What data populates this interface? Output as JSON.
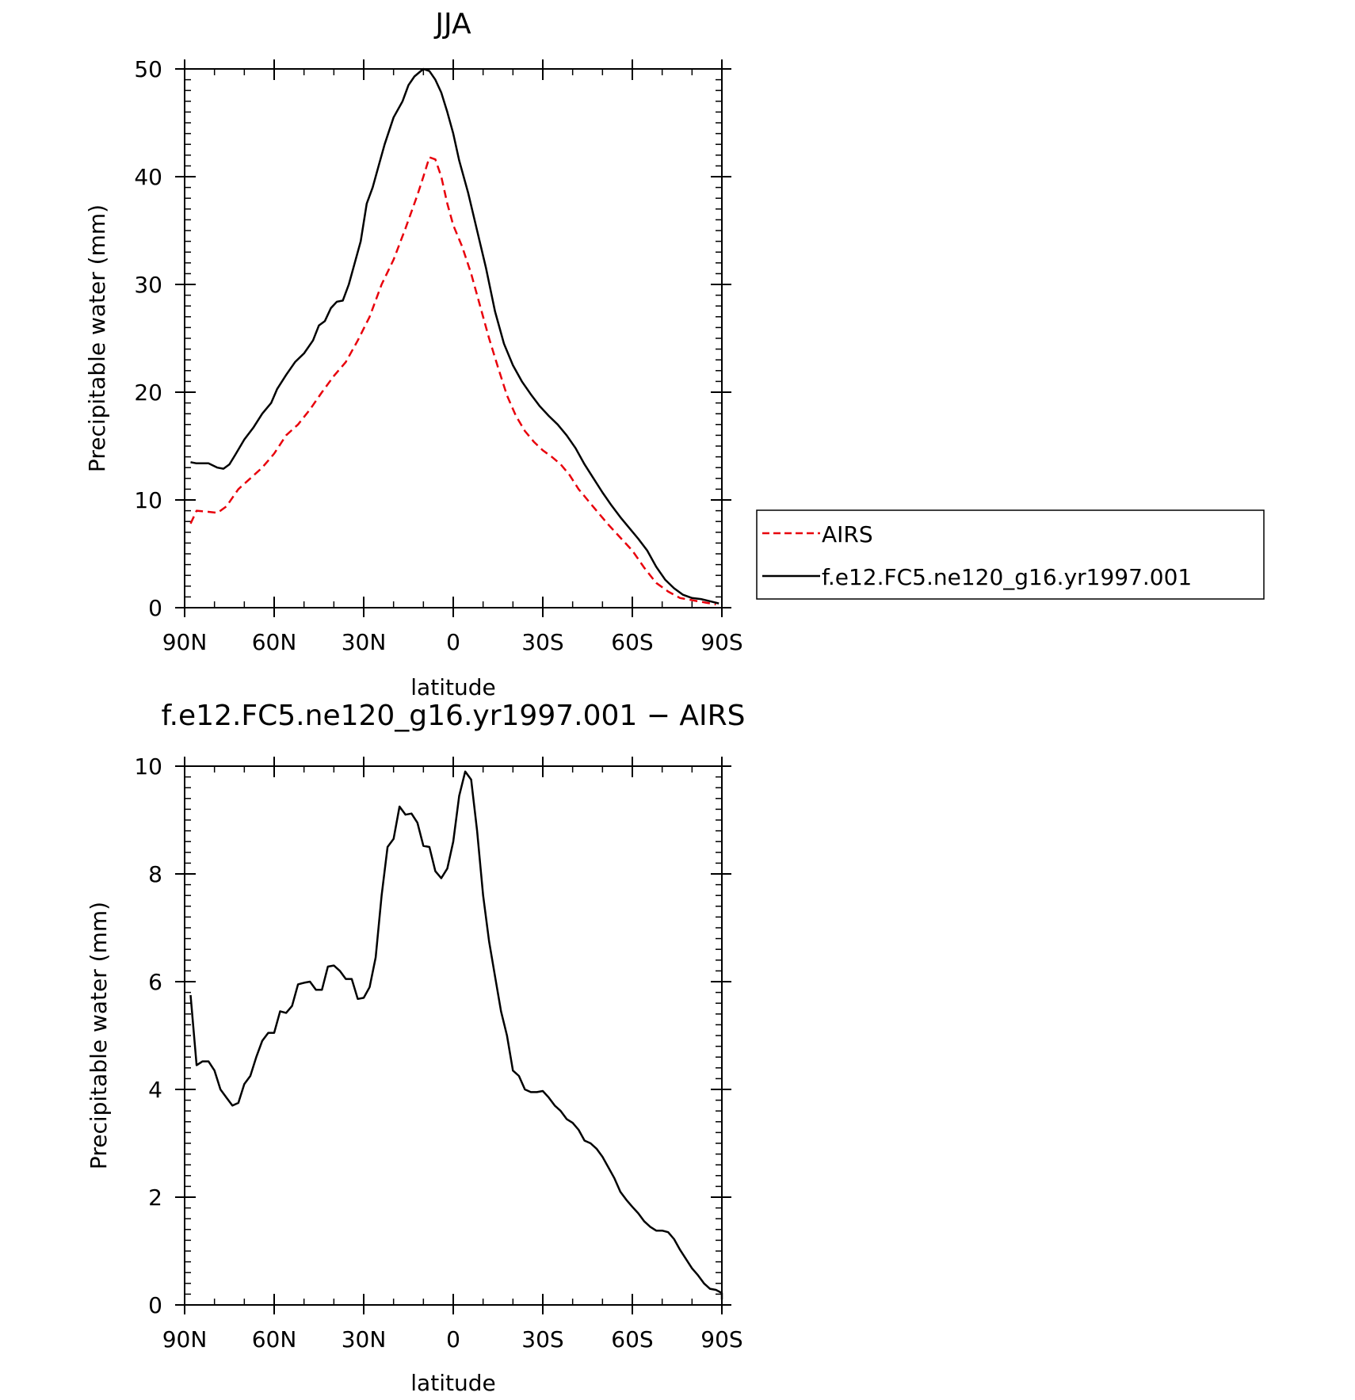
{
  "chart_data": [
    {
      "type": "line",
      "title": "JJA",
      "xlabel": "latitude",
      "ylabel": "Precipitable water (mm)",
      "xlim": [
        90,
        -90
      ],
      "ylim": [
        0,
        50
      ],
      "x_ticks": [
        {
          "value": 90,
          "label": "90N"
        },
        {
          "value": 60,
          "label": "60N"
        },
        {
          "value": 30,
          "label": "30N"
        },
        {
          "value": 0,
          "label": "0"
        },
        {
          "value": -30,
          "label": "30S"
        },
        {
          "value": -60,
          "label": "60S"
        },
        {
          "value": -90,
          "label": "90S"
        }
      ],
      "y_ticks": [
        {
          "value": 0,
          "label": "0"
        },
        {
          "value": 10,
          "label": "10"
        },
        {
          "value": 20,
          "label": "20"
        },
        {
          "value": 30,
          "label": "30"
        },
        {
          "value": 40,
          "label": "40"
        },
        {
          "value": 50,
          "label": "50"
        }
      ],
      "legend_position": "right",
      "series": [
        {
          "name": "AIRS",
          "color": "#e8000b",
          "style": "dashed",
          "points": [
            [
              88,
              7.8
            ],
            [
              86,
              9.0
            ],
            [
              82,
              8.9
            ],
            [
              79,
              8.8
            ],
            [
              76,
              9.4
            ],
            [
              72,
              11.0
            ],
            [
              68,
              12.0
            ],
            [
              64,
              13.0
            ],
            [
              60,
              14.3
            ],
            [
              56,
              16.0
            ],
            [
              52,
              17.0
            ],
            [
              48,
              18.4
            ],
            [
              44,
              20.0
            ],
            [
              40,
              21.5
            ],
            [
              36,
              22.8
            ],
            [
              32,
              24.8
            ],
            [
              28,
              27.0
            ],
            [
              24,
              30.0
            ],
            [
              20,
              32.3
            ],
            [
              16,
              35.2
            ],
            [
              12,
              38.3
            ],
            [
              10,
              40.0
            ],
            [
              8,
              41.8
            ],
            [
              6,
              41.6
            ],
            [
              4,
              40.0
            ],
            [
              2,
              37.5
            ],
            [
              0,
              35.5
            ],
            [
              -3,
              33.5
            ],
            [
              -6,
              31.0
            ],
            [
              -9,
              28.0
            ],
            [
              -12,
              25.0
            ],
            [
              -15,
              22.3
            ],
            [
              -18,
              19.7
            ],
            [
              -21,
              17.8
            ],
            [
              -24,
              16.4
            ],
            [
              -27,
              15.4
            ],
            [
              -30,
              14.6
            ],
            [
              -33,
              14.0
            ],
            [
              -36,
              13.3
            ],
            [
              -39,
              12.3
            ],
            [
              -42,
              11.0
            ],
            [
              -45,
              10.0
            ],
            [
              -48,
              9.0
            ],
            [
              -52,
              7.7
            ],
            [
              -56,
              6.5
            ],
            [
              -60,
              5.3
            ],
            [
              -64,
              3.7
            ],
            [
              -68,
              2.3
            ],
            [
              -72,
              1.5
            ],
            [
              -76,
              0.9
            ],
            [
              -80,
              0.7
            ],
            [
              -84,
              0.5
            ],
            [
              -88,
              0.3
            ]
          ]
        },
        {
          "name": "f.e12.FC5.ne120_g16.yr1997.001",
          "color": "#000000",
          "style": "solid",
          "points": [
            [
              88,
              13.5
            ],
            [
              86,
              13.4
            ],
            [
              82,
              13.4
            ],
            [
              79,
              13.0
            ],
            [
              77,
              12.9
            ],
            [
              75,
              13.3
            ],
            [
              73,
              14.2
            ],
            [
              70,
              15.6
            ],
            [
              67,
              16.7
            ],
            [
              64,
              18.0
            ],
            [
              61,
              19.0
            ],
            [
              59,
              20.3
            ],
            [
              56,
              21.6
            ],
            [
              53,
              22.8
            ],
            [
              50,
              23.6
            ],
            [
              47,
              24.8
            ],
            [
              45,
              26.2
            ],
            [
              43,
              26.6
            ],
            [
              41,
              27.8
            ],
            [
              39,
              28.4
            ],
            [
              37,
              28.5
            ],
            [
              35,
              30.0
            ],
            [
              33,
              32.0
            ],
            [
              31,
              34.0
            ],
            [
              29,
              37.5
            ],
            [
              27,
              39.0
            ],
            [
              25,
              41.0
            ],
            [
              23,
              43.0
            ],
            [
              20,
              45.5
            ],
            [
              17,
              47.0
            ],
            [
              15,
              48.5
            ],
            [
              13,
              49.3
            ],
            [
              10,
              50.0
            ],
            [
              8,
              49.8
            ],
            [
              6,
              49.0
            ],
            [
              4,
              47.8
            ],
            [
              2,
              46.0
            ],
            [
              0,
              44.0
            ],
            [
              -2,
              41.5
            ],
            [
              -5,
              38.5
            ],
            [
              -8,
              35.0
            ],
            [
              -11,
              31.5
            ],
            [
              -14,
              27.5
            ],
            [
              -17,
              24.5
            ],
            [
              -20,
              22.5
            ],
            [
              -23,
              21.0
            ],
            [
              -26,
              19.8
            ],
            [
              -29,
              18.7
            ],
            [
              -32,
              17.8
            ],
            [
              -35,
              17.0
            ],
            [
              -38,
              16.0
            ],
            [
              -41,
              14.8
            ],
            [
              -44,
              13.3
            ],
            [
              -47,
              12.0
            ],
            [
              -50,
              10.7
            ],
            [
              -53,
              9.5
            ],
            [
              -56,
              8.4
            ],
            [
              -59,
              7.4
            ],
            [
              -62,
              6.4
            ],
            [
              -65,
              5.3
            ],
            [
              -68,
              3.8
            ],
            [
              -71,
              2.6
            ],
            [
              -74,
              1.8
            ],
            [
              -77,
              1.2
            ],
            [
              -80,
              0.9
            ],
            [
              -83,
              0.8
            ],
            [
              -86,
              0.6
            ],
            [
              -89,
              0.4
            ]
          ]
        }
      ]
    },
    {
      "type": "line",
      "title": "f.e12.FC5.ne120_g16.yr1997.001 − AIRS",
      "xlabel": "latitude",
      "ylabel": "Precipitable water (mm)",
      "xlim": [
        90,
        -90
      ],
      "ylim": [
        0,
        10
      ],
      "x_ticks": [
        {
          "value": 90,
          "label": "90N"
        },
        {
          "value": 60,
          "label": "60N"
        },
        {
          "value": 30,
          "label": "30N"
        },
        {
          "value": 0,
          "label": "0"
        },
        {
          "value": -30,
          "label": "30S"
        },
        {
          "value": -60,
          "label": "60S"
        },
        {
          "value": -90,
          "label": "90S"
        }
      ],
      "y_ticks": [
        {
          "value": 0,
          "label": "0"
        },
        {
          "value": 2,
          "label": "2"
        },
        {
          "value": 4,
          "label": "4"
        },
        {
          "value": 6,
          "label": "6"
        },
        {
          "value": 8,
          "label": "8"
        },
        {
          "value": 10,
          "label": "10"
        }
      ],
      "series": [
        {
          "color": "#000000",
          "style": "solid",
          "points": [
            [
              88,
              5.75
            ],
            [
              86,
              4.45
            ],
            [
              84,
              4.52
            ],
            [
              82,
              4.52
            ],
            [
              80,
              4.35
            ],
            [
              78,
              4.0
            ],
            [
              76,
              3.85
            ],
            [
              74,
              3.7
            ],
            [
              72,
              3.75
            ],
            [
              70,
              4.1
            ],
            [
              68,
              4.25
            ],
            [
              66,
              4.6
            ],
            [
              64,
              4.9
            ],
            [
              62,
              5.05
            ],
            [
              60,
              5.05
            ],
            [
              58,
              5.45
            ],
            [
              56,
              5.42
            ],
            [
              54,
              5.55
            ],
            [
              52,
              5.95
            ],
            [
              50,
              5.98
            ],
            [
              48,
              6.0
            ],
            [
              46,
              5.85
            ],
            [
              44,
              5.85
            ],
            [
              42,
              6.28
            ],
            [
              40,
              6.3
            ],
            [
              38,
              6.2
            ],
            [
              36,
              6.05
            ],
            [
              34,
              6.05
            ],
            [
              32,
              5.68
            ],
            [
              30,
              5.7
            ],
            [
              28,
              5.9
            ],
            [
              26,
              6.45
            ],
            [
              24,
              7.6
            ],
            [
              22,
              8.5
            ],
            [
              20,
              8.65
            ],
            [
              18,
              9.25
            ],
            [
              16,
              9.1
            ],
            [
              14,
              9.12
            ],
            [
              12,
              8.95
            ],
            [
              10,
              8.52
            ],
            [
              8,
              8.5
            ],
            [
              6,
              8.05
            ],
            [
              4,
              7.92
            ],
            [
              2,
              8.1
            ],
            [
              0,
              8.6
            ],
            [
              -2,
              9.45
            ],
            [
              -4,
              9.9
            ],
            [
              -6,
              9.75
            ],
            [
              -8,
              8.8
            ],
            [
              -10,
              7.6
            ],
            [
              -12,
              6.75
            ],
            [
              -14,
              6.1
            ],
            [
              -16,
              5.45
            ],
            [
              -18,
              5.0
            ],
            [
              -20,
              4.35
            ],
            [
              -22,
              4.25
            ],
            [
              -24,
              4.0
            ],
            [
              -26,
              3.95
            ],
            [
              -28,
              3.95
            ],
            [
              -30,
              3.97
            ],
            [
              -32,
              3.85
            ],
            [
              -34,
              3.7
            ],
            [
              -36,
              3.6
            ],
            [
              -38,
              3.45
            ],
            [
              -40,
              3.38
            ],
            [
              -42,
              3.25
            ],
            [
              -44,
              3.05
            ],
            [
              -46,
              3.0
            ],
            [
              -48,
              2.9
            ],
            [
              -50,
              2.75
            ],
            [
              -52,
              2.55
            ],
            [
              -54,
              2.35
            ],
            [
              -56,
              2.1
            ],
            [
              -58,
              1.95
            ],
            [
              -60,
              1.82
            ],
            [
              -62,
              1.7
            ],
            [
              -64,
              1.55
            ],
            [
              -66,
              1.45
            ],
            [
              -68,
              1.38
            ],
            [
              -70,
              1.38
            ],
            [
              -72,
              1.35
            ],
            [
              -74,
              1.22
            ],
            [
              -76,
              1.02
            ],
            [
              -78,
              0.85
            ],
            [
              -80,
              0.68
            ],
            [
              -82,
              0.55
            ],
            [
              -84,
              0.4
            ],
            [
              -86,
              0.3
            ],
            [
              -88,
              0.28
            ],
            [
              -90,
              0.22
            ],
            [
              -92,
              0.18
            ],
            [
              -94,
              0.12
            ],
            [
              -96,
              0.1
            ]
          ]
        }
      ]
    }
  ]
}
